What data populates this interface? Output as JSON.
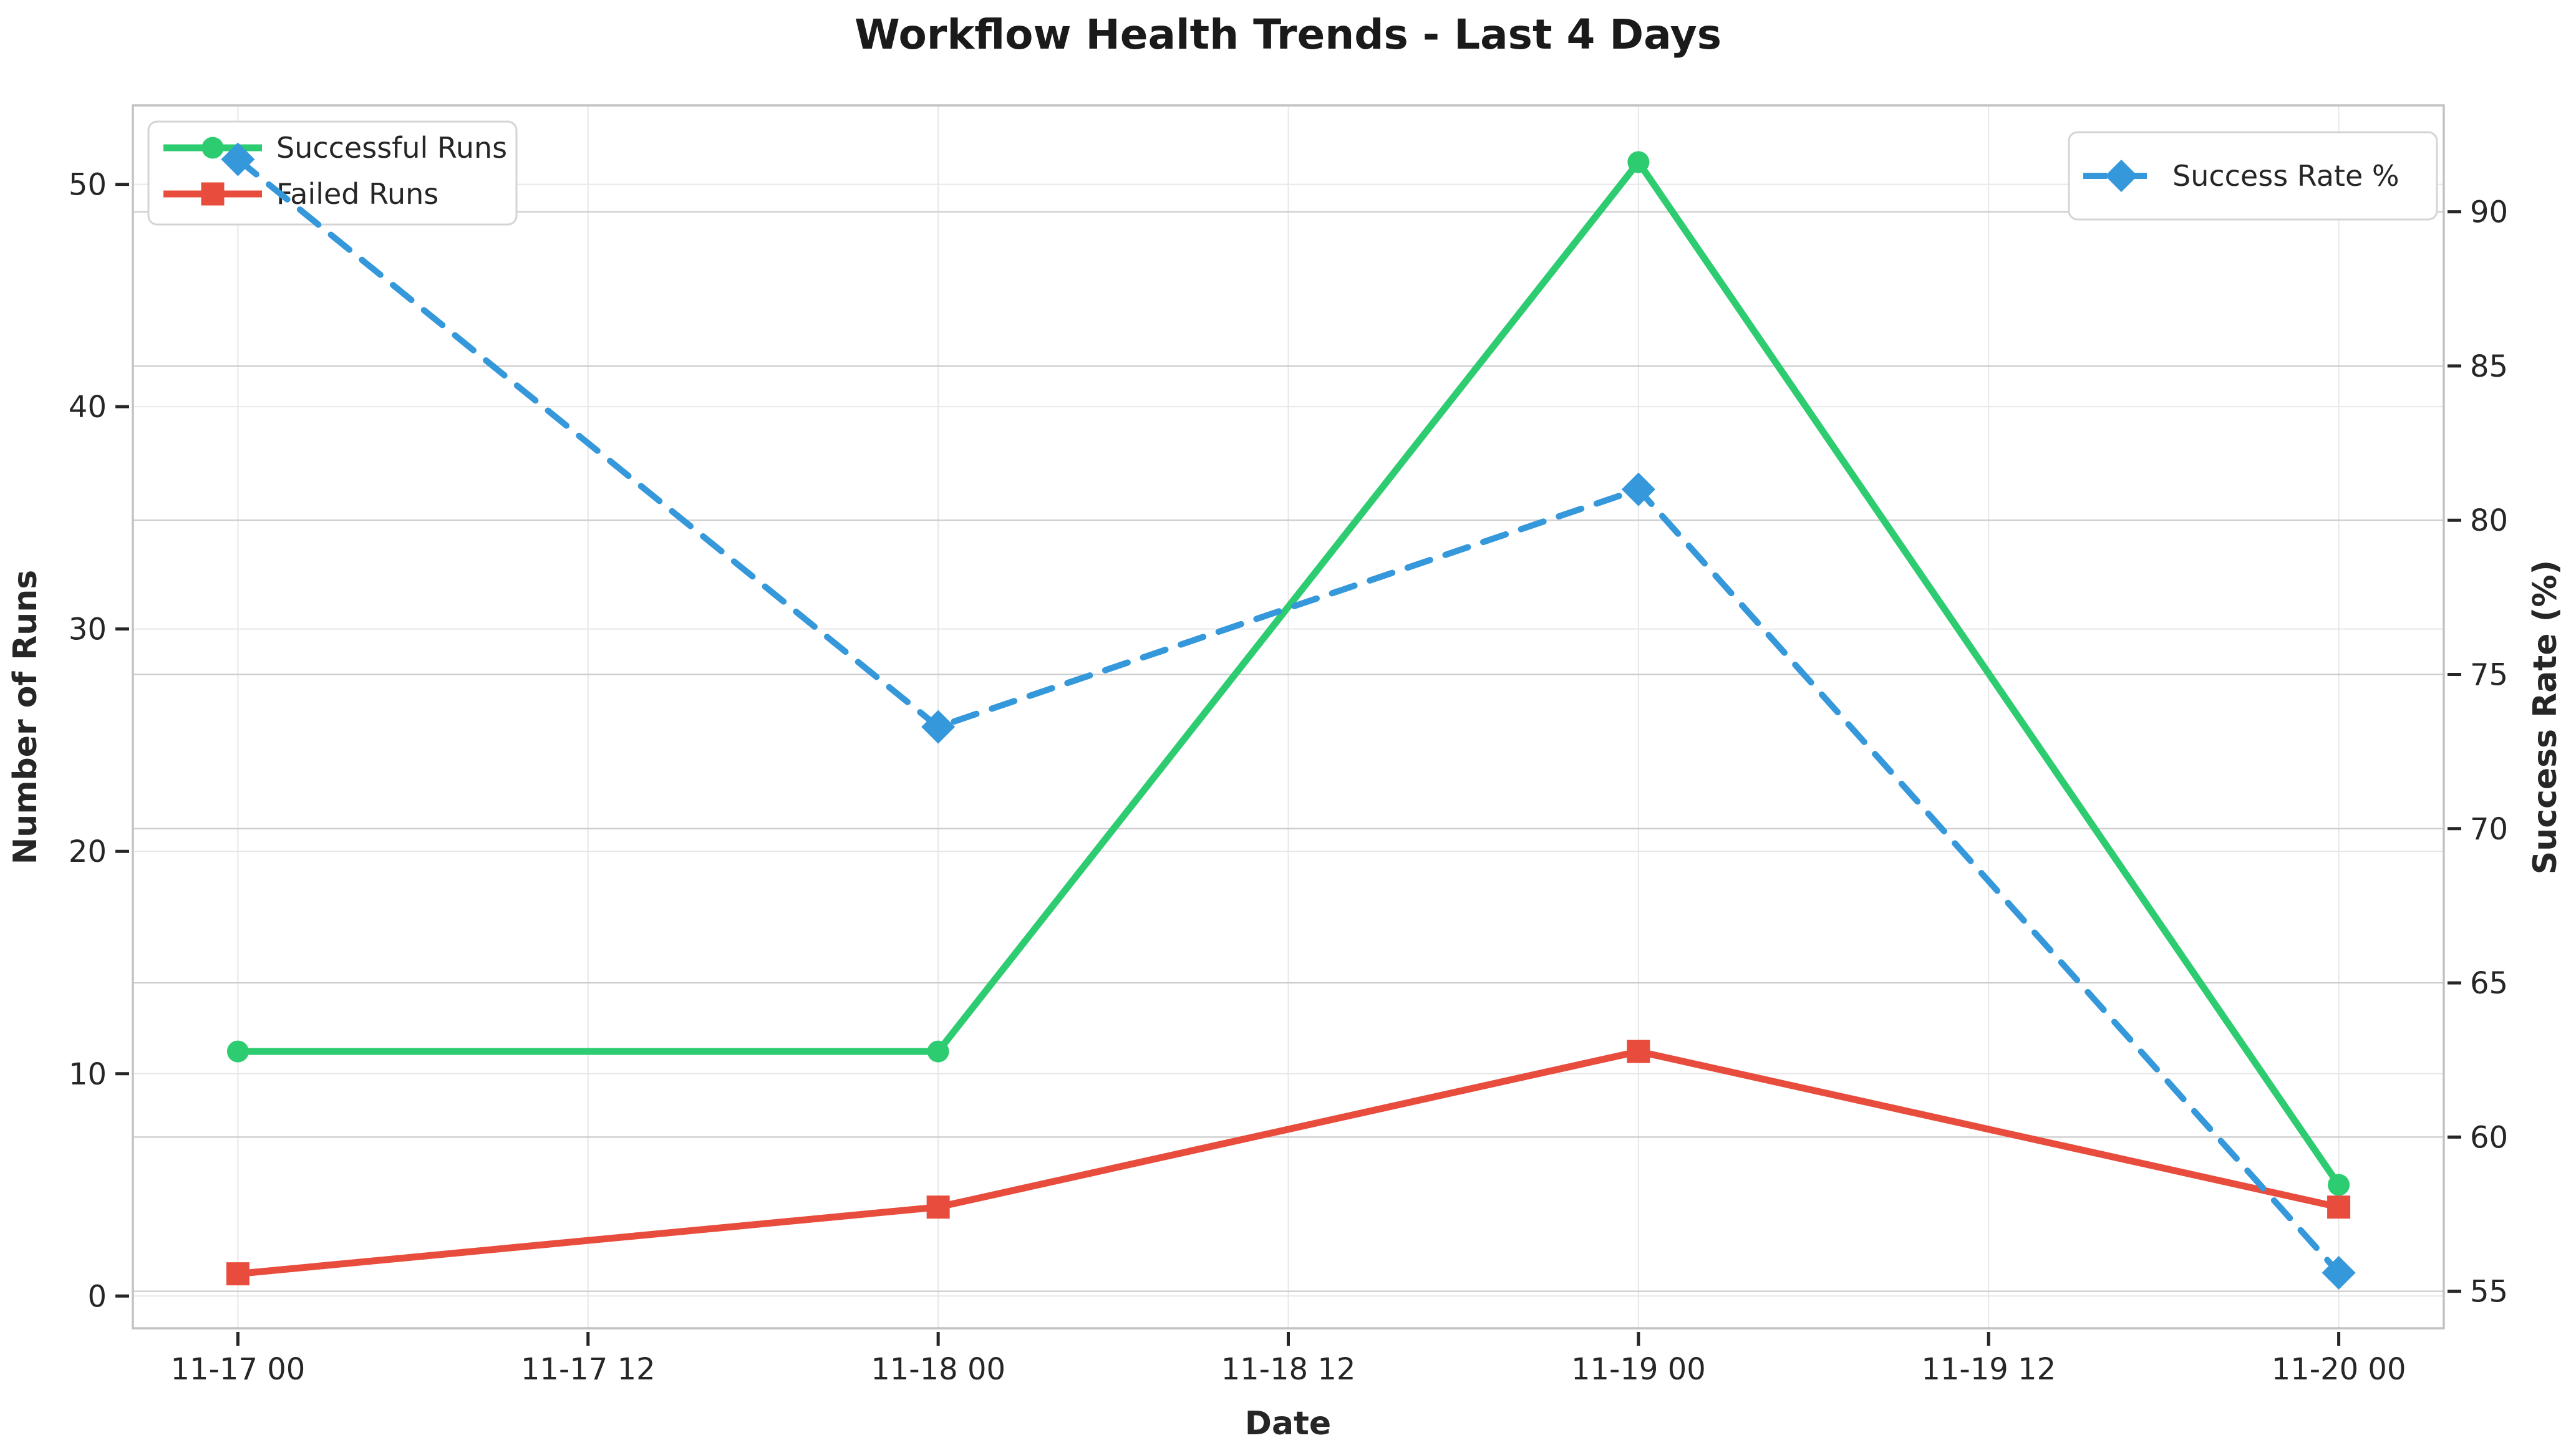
{
  "figure": {
    "title": "Workflow Health Trends - Last 4 Days",
    "xlabel": "Date",
    "ylabel_left": "Number of Runs",
    "ylabel_right": "Success Rate (%)"
  },
  "chart_data": {
    "type": "line",
    "title": "Workflow Health Trends - Last 4 Days",
    "xlabel": "Date",
    "ylabel_left": "Number of Runs",
    "ylabel_right": "Success Rate (%)",
    "x_tick_labels": [
      "11-17 00",
      "11-17 12",
      "11-18 00",
      "11-18 12",
      "11-19 00",
      "11-19 12",
      "11-20 00"
    ],
    "x_tick_hours": [
      0,
      12,
      24,
      36,
      48,
      60,
      72
    ],
    "x_hours": [
      0,
      24,
      48,
      72
    ],
    "xlim_hours": [
      -3.6,
      75.6
    ],
    "left_axis": {
      "ticks": [
        0,
        10,
        20,
        30,
        40,
        50
      ],
      "lim": [
        -1.45,
        53.55
      ]
    },
    "right_axis": {
      "ticks": [
        55,
        60,
        65,
        70,
        75,
        80,
        85,
        90
      ],
      "lim": [
        53.8,
        93.45
      ]
    },
    "grid": true,
    "legend_positions": [
      "upper left",
      "upper right"
    ],
    "series": [
      {
        "name": "Successful Runs",
        "axis": "left",
        "color": "#2ecc71",
        "marker": "circle",
        "linestyle": "solid",
        "values": [
          11,
          11,
          51,
          5
        ]
      },
      {
        "name": "Failed Runs",
        "axis": "left",
        "color": "#e74c3c",
        "marker": "square",
        "linestyle": "solid",
        "values": [
          1,
          4,
          11,
          4
        ]
      },
      {
        "name": "Success Rate %",
        "axis": "right",
        "color": "#3498db",
        "marker": "diamond",
        "linestyle": "dashed",
        "values": [
          91.7,
          73.3,
          81.0,
          55.6
        ]
      }
    ],
    "colors": {
      "grid_left": "#e7e7e7",
      "grid_right": "#cccccc",
      "spine": "#c2c2c2",
      "tick": "#262626",
      "text": "#262626"
    }
  }
}
